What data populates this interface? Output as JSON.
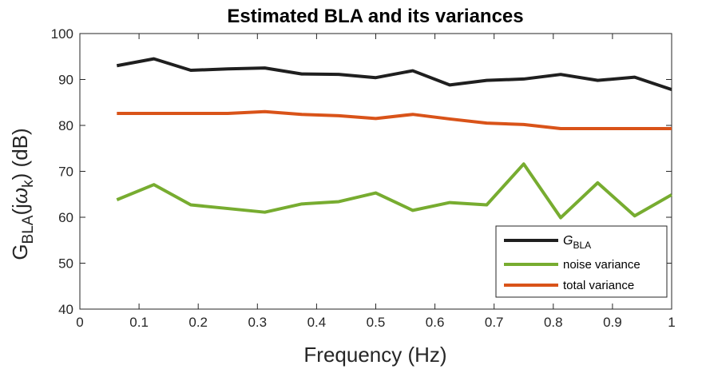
{
  "chart_data": {
    "type": "line",
    "title": "Estimated BLA and its variances",
    "xlabel": "Frequency (Hz)",
    "ylabel": {
      "main": "G",
      "sub": "BLA",
      "paren_open": "(j",
      "omega": "ω",
      "omega_sub": "k",
      "paren_close": ") (dB)"
    },
    "xlim": [
      0,
      1
    ],
    "ylim": [
      40,
      100
    ],
    "xticks": [
      "0",
      "0.1",
      "0.2",
      "0.3",
      "0.4",
      "0.5",
      "0.6",
      "0.7",
      "0.8",
      "0.9",
      "1"
    ],
    "yticks": [
      "40",
      "50",
      "60",
      "70",
      "80",
      "90",
      "100"
    ],
    "grid": false,
    "legend_position": "bottom-right",
    "x": [
      0.0625,
      0.125,
      0.1875,
      0.25,
      0.3125,
      0.375,
      0.4375,
      0.5,
      0.5625,
      0.625,
      0.6875,
      0.75,
      0.8125,
      0.875,
      0.9375,
      1.0
    ],
    "series": [
      {
        "name": "G_BLA",
        "legend_main": "G",
        "legend_sub": "BLA",
        "color": "#1f1f1f",
        "values": [
          93.0,
          94.5,
          92.0,
          92.3,
          92.5,
          91.2,
          91.1,
          90.4,
          91.9,
          88.8,
          89.8,
          90.1,
          91.1,
          89.8,
          90.5,
          87.8
        ]
      },
      {
        "name": "noise variance",
        "legend_main": "noise variance",
        "legend_sub": "",
        "color": "#77ac30",
        "values": [
          63.8,
          67.1,
          62.7,
          61.9,
          61.1,
          62.9,
          63.4,
          65.3,
          61.5,
          63.2,
          62.7,
          71.6,
          59.9,
          67.5,
          60.3,
          64.9
        ]
      },
      {
        "name": "total variance",
        "legend_main": "total variance",
        "legend_sub": "",
        "color": "#d95319",
        "values": [
          82.6,
          82.6,
          82.6,
          82.6,
          83.0,
          82.4,
          82.1,
          81.5,
          82.4,
          81.4,
          80.5,
          80.2,
          79.3,
          79.3,
          79.3,
          79.3
        ]
      }
    ]
  }
}
